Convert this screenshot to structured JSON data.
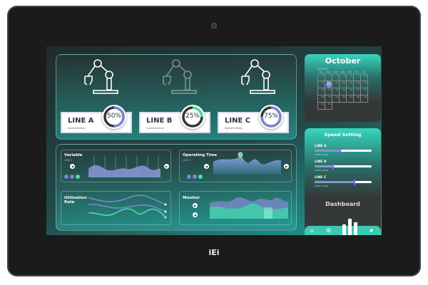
{
  "lines": [
    {
      "name": "LINE A",
      "subtitle": "Speed Setting",
      "percent": 50,
      "percent_label": "50%",
      "ring_color": "#7d87d0",
      "robot_active": true
    },
    {
      "name": "LINE B",
      "subtitle": "Speed Setting",
      "percent": 25,
      "percent_label": "25%",
      "ring_color": "#4fdca5",
      "robot_active": false
    },
    {
      "name": "LINE C",
      "subtitle": "Speed Setting",
      "percent": 75,
      "percent_label": "75%",
      "ring_color": "#7d87d0",
      "robot_active": true
    }
  ],
  "widgets": {
    "variable": {
      "title": "Variable",
      "subtitle": "LINE C"
    },
    "operating": {
      "title": "Operating Time",
      "subtitle": "LINE A"
    },
    "utilization": {
      "title": "Utilization Rate"
    },
    "monitor": {
      "title": "Monitor"
    }
  },
  "calendar": {
    "month": "October",
    "date": "2022/10",
    "weekdays": [
      "SUN",
      "MON",
      "TUE",
      "WED",
      "THU",
      "FRI",
      "SAT"
    ],
    "weeks": [
      [
        "2",
        "3",
        "4",
        "5",
        "6",
        "7",
        "1/8"
      ],
      [
        "9",
        "10",
        "11",
        "12",
        "13",
        "14",
        "15"
      ],
      [
        "16",
        "17",
        "18",
        "19",
        "20",
        "21",
        "22"
      ],
      [
        "23",
        "24",
        "25",
        "26",
        "27",
        "28",
        "29"
      ],
      [
        "30",
        "31",
        "",
        "",
        "",
        "",
        ""
      ]
    ],
    "selected": "10",
    "accent": "#8a8ee0"
  },
  "speed": {
    "title": "Speed Setting",
    "sliders": [
      {
        "label": "LINE A",
        "value_label": "(3000 mm/s)",
        "level": 0.45
      },
      {
        "label": "LINE B",
        "value_label": "(1500 mm/s)",
        "level": 0.32
      },
      {
        "label": "LINE C",
        "value_label": "(4500 mm/s)",
        "level": 0.7
      }
    ]
  },
  "dashboard": {
    "title": "Dashboard"
  },
  "nav": [
    "home-icon",
    "gear-icon",
    "bar-chart-icon",
    "star-icon"
  ],
  "brand": "iEi"
}
